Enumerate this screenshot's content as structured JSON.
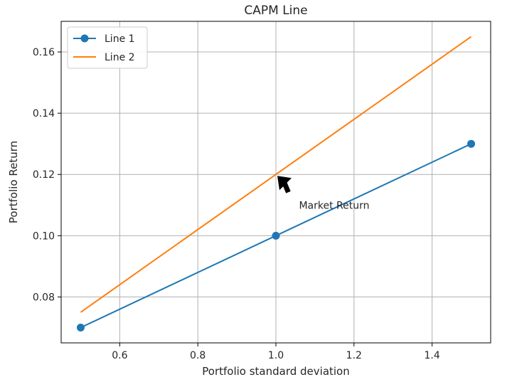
{
  "chart_data": {
    "type": "line",
    "title": "CAPM Line",
    "xlabel": "Portfolio standard deviation",
    "ylabel": "Portfolio Return",
    "xlim": [
      0.45,
      1.55
    ],
    "ylim": [
      0.065,
      0.17
    ],
    "x_ticks": [
      0.6,
      0.8,
      1.0,
      1.2,
      1.4
    ],
    "y_ticks": [
      0.08,
      0.1,
      0.12,
      0.14,
      0.16
    ],
    "x_tick_labels": [
      "0.6",
      "0.8",
      "1.0",
      "1.2",
      "1.4"
    ],
    "y_tick_labels": [
      "0.08",
      "0.10",
      "0.12",
      "0.14",
      "0.16"
    ],
    "grid": true,
    "legend_position": "top-left",
    "series": [
      {
        "name": "Line 1",
        "x": [
          0.5,
          1.0,
          1.5
        ],
        "y": [
          0.07,
          0.1,
          0.13
        ],
        "color": "#1f77b4",
        "marker": "circle"
      },
      {
        "name": "Line 2",
        "x": [
          0.5,
          1.0,
          1.5
        ],
        "y": [
          0.075,
          0.12,
          0.165
        ],
        "color": "#ff7f0e",
        "marker": "none"
      }
    ],
    "annotations": [
      {
        "text": "Market Return",
        "point": [
          1.0,
          0.12
        ],
        "text_at": [
          1.05,
          0.11
        ]
      }
    ]
  }
}
